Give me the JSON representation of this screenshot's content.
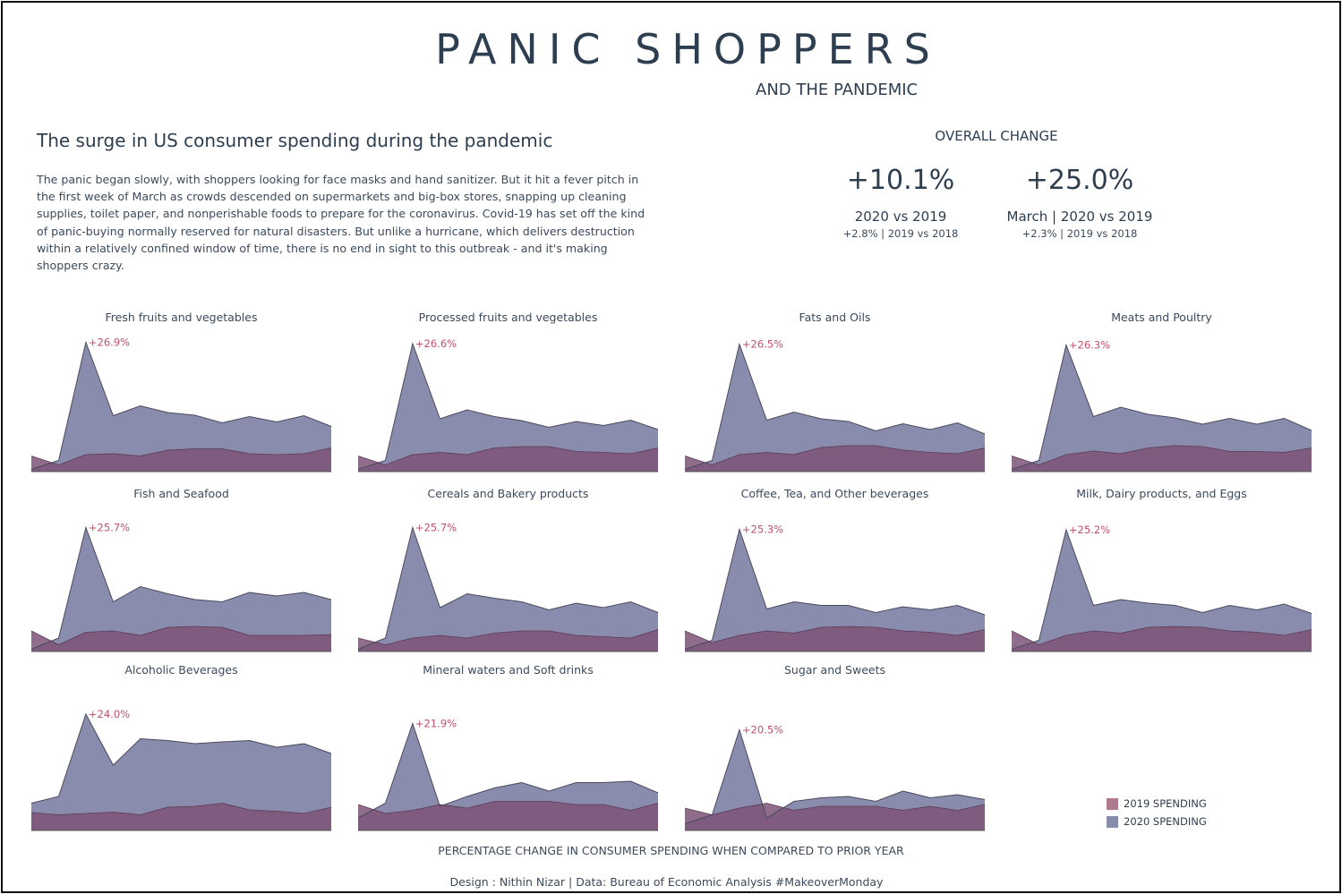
{
  "header": {
    "title": "PANIC  SHOPPERS",
    "subtitle": "AND THE PANDEMIC"
  },
  "intro": {
    "headline": "The surge in US consumer spending during the pandemic",
    "body": "The panic began slowly, with shoppers looking for face masks and hand sanitizer. But it hit a fever pitch in the first week of March as crowds descended on supermarkets and big-box stores, snapping up cleaning supplies, toilet paper, and nonperishable foods to prepare for the coronavirus. Covid-19 has set off the kind of panic-buying normally reserved for natural disasters. But unlike a hurricane, which delivers destruction within a relatively confined window of time, there is no end in sight to this outbreak - and it's making shoppers crazy."
  },
  "overall": {
    "label": "OVERALL CHANGE",
    "kpis": [
      {
        "value": "+10.1%",
        "label": "2020 vs 2019",
        "sub": "+2.8% | 2019 vs 2018"
      },
      {
        "value": "+25.0%",
        "label": "March | 2020 vs 2019",
        "sub": "+2.3% | 2019 vs 2018"
      }
    ]
  },
  "colors": {
    "spending_2019": "#b07a8e",
    "spending_2020": "#8a8cae",
    "overlap": "#7d5477",
    "annotation": "#c0506a",
    "outline": "#4a4a5c"
  },
  "legend": {
    "items": [
      {
        "label": "2019 SPENDING",
        "color": "#b07a8e"
      },
      {
        "label": "2020 SPENDING",
        "color": "#8a8cae"
      }
    ]
  },
  "footer": {
    "caption": "PERCENTAGE CHANGE IN CONSUMER SPENDING WHEN COMPARED TO PRIOR YEAR",
    "credit": "Design : Nithin Nizar | Data: Bureau of Economic Analysis #MakeoverMonday"
  },
  "chart_data": {
    "type": "area",
    "description_units": "percent change vs prior year",
    "x_points": 12,
    "ylim": [
      -2,
      28
    ],
    "panels": [
      {
        "title": "Fresh fruits and vegetables",
        "peak_label": "+26.9%",
        "series": [
          {
            "name": "2019 SPENDING",
            "values": [
              1.5,
              -0.5,
              1.8,
              2.0,
              1.5,
              2.8,
              3.1,
              3.1,
              2.0,
              1.8,
              2.0,
              3.3
            ]
          },
          {
            "name": "2020 SPENDING",
            "values": [
              -1.5,
              0.5,
              26.9,
              10.5,
              12.7,
              11.2,
              10.6,
              8.9,
              10.3,
              9.1,
              10.5,
              8.1
            ]
          }
        ]
      },
      {
        "title": "Processed fruits and vegetables",
        "peak_label": "+26.6%",
        "series": [
          {
            "name": "2019 SPENDING",
            "values": [
              1.5,
              -0.5,
              1.8,
              2.3,
              1.8,
              3.3,
              3.6,
              3.6,
              2.5,
              2.3,
              2.0,
              3.3
            ]
          },
          {
            "name": "2020 SPENDING",
            "values": [
              -1.5,
              0.5,
              26.6,
              9.8,
              11.8,
              10.3,
              9.4,
              7.9,
              9.2,
              8.3,
              9.5,
              7.4
            ]
          }
        ]
      },
      {
        "title": "Fats and Oils",
        "peak_label": "+26.5%",
        "series": [
          {
            "name": "2019 SPENDING",
            "values": [
              1.5,
              -0.5,
              1.8,
              2.3,
              1.8,
              3.4,
              3.8,
              3.8,
              2.8,
              2.3,
              2.0,
              3.3
            ]
          },
          {
            "name": "2020 SPENDING",
            "values": [
              -1.5,
              0.5,
              26.5,
              9.5,
              11.3,
              9.8,
              9.2,
              7.1,
              8.7,
              7.4,
              8.9,
              6.4
            ]
          }
        ]
      },
      {
        "title": "Meats and Poultry",
        "peak_label": "+26.3%",
        "series": [
          {
            "name": "2019 SPENDING",
            "values": [
              1.5,
              -0.5,
              1.8,
              2.6,
              2.0,
              3.3,
              3.8,
              3.6,
              2.5,
              2.5,
              2.3,
              3.3
            ]
          },
          {
            "name": "2020 SPENDING",
            "values": [
              -1.5,
              0.5,
              26.3,
              10.3,
              12.4,
              10.8,
              10.0,
              8.6,
              9.9,
              8.6,
              9.9,
              7.2
            ]
          }
        ]
      },
      {
        "title": "Fish and Seafood",
        "peak_label": "+25.7%",
        "series": [
          {
            "name": "2019 SPENDING",
            "values": [
              2.6,
              -0.5,
              2.3,
              2.6,
              1.6,
              3.4,
              3.6,
              3.4,
              1.6,
              1.6,
              1.6,
              1.8
            ]
          },
          {
            "name": "2020 SPENDING",
            "values": [
              -1.5,
              1.0,
              25.7,
              9.1,
              12.5,
              10.9,
              9.6,
              9.1,
              11.2,
              10.4,
              11.2,
              9.6
            ]
          }
        ]
      },
      {
        "title": "Cereals and Bakery products",
        "peak_label": "+25.7%",
        "series": [
          {
            "name": "2019 SPENDING",
            "values": [
              1.0,
              -0.5,
              1.0,
              1.6,
              1.0,
              2.1,
              2.6,
              2.6,
              1.6,
              1.3,
              1.0,
              2.9
            ]
          },
          {
            "name": "2020 SPENDING",
            "values": [
              -1.5,
              1.0,
              25.7,
              7.8,
              10.9,
              9.9,
              9.1,
              7.3,
              8.8,
              7.8,
              9.1,
              6.7
            ]
          }
        ]
      },
      {
        "title": "Coffee, Tea, and Other beverages",
        "peak_label": "+25.3%",
        "series": [
          {
            "name": "2019 SPENDING",
            "values": [
              2.6,
              0.0,
              1.6,
              2.6,
              2.1,
              3.4,
              3.6,
              3.4,
              2.6,
              2.3,
              1.6,
              2.9
            ]
          },
          {
            "name": "2020 SPENDING",
            "values": [
              -1.5,
              0.5,
              25.3,
              7.5,
              9.1,
              8.3,
              8.3,
              6.7,
              8.0,
              7.3,
              8.3,
              6.2
            ]
          }
        ]
      },
      {
        "title": "Milk, Dairy products, and Eggs",
        "peak_label": "+25.2%",
        "series": [
          {
            "name": "2019 SPENDING",
            "values": [
              2.6,
              -0.5,
              1.6,
              2.6,
              2.1,
              3.4,
              3.6,
              3.4,
              2.6,
              2.3,
              1.6,
              2.9
            ]
          },
          {
            "name": "2020 SPENDING",
            "values": [
              -1.5,
              0.5,
              25.2,
              8.3,
              9.6,
              8.8,
              8.3,
              6.7,
              8.3,
              7.3,
              8.6,
              6.5
            ]
          }
        ]
      },
      {
        "title": "Alcoholic Beverages",
        "peak_label": "+24.0%",
        "series": [
          {
            "name": "2019 SPENDING",
            "values": [
              2.0,
              1.5,
              1.8,
              2.1,
              1.5,
              3.2,
              3.4,
              4.1,
              2.6,
              2.3,
              1.8,
              3.2
            ]
          },
          {
            "name": "2020 SPENDING",
            "values": [
              4.1,
              5.6,
              24.0,
              12.6,
              18.5,
              18.1,
              17.4,
              17.8,
              18.1,
              16.6,
              17.4,
              15.2
            ]
          }
        ]
      },
      {
        "title": "Mineral waters and Soft drinks",
        "peak_label": "+21.9%",
        "series": [
          {
            "name": "2019 SPENDING",
            "values": [
              3.8,
              1.8,
              2.5,
              3.8,
              3.0,
              4.5,
              4.5,
              4.5,
              3.8,
              3.8,
              2.5,
              4.1
            ]
          },
          {
            "name": "2020 SPENDING",
            "values": [
              0.8,
              4.1,
              21.9,
              3.4,
              5.6,
              7.5,
              8.7,
              6.8,
              8.7,
              8.7,
              9.0,
              6.4
            ]
          }
        ]
      },
      {
        "title": "Sugar and Sweets",
        "peak_label": "+20.5%",
        "series": [
          {
            "name": "2019 SPENDING",
            "values": [
              3.0,
              1.5,
              3.0,
              4.1,
              2.5,
              3.4,
              3.4,
              3.4,
              2.5,
              3.4,
              2.5,
              3.8
            ]
          },
          {
            "name": "2020 SPENDING",
            "values": [
              -0.5,
              1.5,
              20.5,
              0.8,
              4.5,
              5.3,
              5.6,
              4.5,
              6.8,
              5.3,
              6.0,
              4.9
            ]
          }
        ]
      }
    ]
  }
}
